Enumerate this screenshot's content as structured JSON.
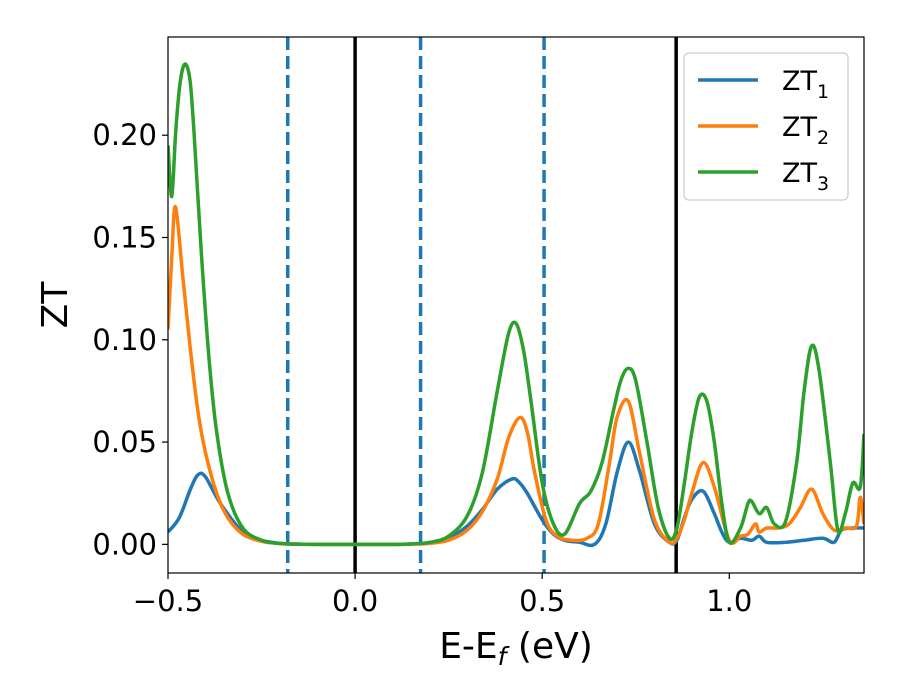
{
  "chart_data": {
    "type": "line",
    "title": "",
    "xlabel": "E-E",
    "xlabel_sub": "f",
    "xlabel_unit": " (eV)",
    "ylabel": "ZT",
    "xlim": [
      -0.5,
      1.36
    ],
    "ylim": [
      -0.014,
      0.248
    ],
    "x_ticks": [
      -0.5,
      0.0,
      0.5,
      1.0
    ],
    "x_tick_labels": [
      "−0.5",
      "0.0",
      "0.5",
      "1.0"
    ],
    "y_ticks": [
      0.0,
      0.05,
      0.1,
      0.15,
      0.2
    ],
    "y_tick_labels": [
      "0.00",
      "0.05",
      "0.10",
      "0.15",
      "0.20"
    ],
    "grid": false,
    "legend_position": "top-right",
    "vlines": [
      {
        "x": 0.0,
        "style": "solid",
        "color": "#000000"
      },
      {
        "x": 0.858,
        "style": "solid",
        "color": "#000000"
      },
      {
        "x": -0.18,
        "style": "dashed",
        "color": "#1f77b4"
      },
      {
        "x": 0.175,
        "style": "dashed",
        "color": "#1f77b4"
      },
      {
        "x": 0.505,
        "style": "dashed",
        "color": "#1f77b4"
      }
    ],
    "series": [
      {
        "name": "ZT",
        "name_sub": "1",
        "color": "#1f77b4",
        "x": [
          -0.5,
          -0.47,
          -0.44,
          -0.42,
          -0.4,
          -0.36,
          -0.3,
          -0.25,
          -0.2,
          -0.15,
          -0.1,
          0.0,
          0.1,
          0.15,
          0.2,
          0.25,
          0.3,
          0.34,
          0.38,
          0.42,
          0.44,
          0.46,
          0.5,
          0.53,
          0.56,
          0.6,
          0.64,
          0.67,
          0.7,
          0.73,
          0.76,
          0.8,
          0.84,
          0.86,
          0.88,
          0.9,
          0.93,
          0.96,
          0.98,
          1.0,
          1.03,
          1.06,
          1.08,
          1.1,
          1.15,
          1.2,
          1.25,
          1.28,
          1.3,
          1.33,
          1.36
        ],
        "y": [
          0.006,
          0.013,
          0.027,
          0.034,
          0.033,
          0.02,
          0.006,
          0.002,
          0.0005,
          0.0001,
          0.0,
          0.0,
          0.0,
          0.0002,
          0.0008,
          0.003,
          0.009,
          0.017,
          0.027,
          0.032,
          0.03,
          0.025,
          0.012,
          0.005,
          0.002,
          0.001,
          0.0,
          0.01,
          0.035,
          0.05,
          0.036,
          0.01,
          0.001,
          0.002,
          0.013,
          0.022,
          0.026,
          0.015,
          0.006,
          0.001,
          0.003,
          0.002,
          0.004,
          0.001,
          0.001,
          0.002,
          0.003,
          0.001,
          0.007,
          0.008,
          0.008
        ]
      },
      {
        "name": "ZT",
        "name_sub": "2",
        "color": "#ff7f0e",
        "x": [
          -0.5,
          -0.49,
          -0.48,
          -0.46,
          -0.44,
          -0.42,
          -0.4,
          -0.37,
          -0.34,
          -0.3,
          -0.25,
          -0.2,
          -0.15,
          -0.1,
          0.0,
          0.1,
          0.15,
          0.2,
          0.25,
          0.3,
          0.34,
          0.38,
          0.41,
          0.44,
          0.46,
          0.48,
          0.51,
          0.54,
          0.58,
          0.62,
          0.65,
          0.68,
          0.7,
          0.73,
          0.76,
          0.8,
          0.84,
          0.86,
          0.88,
          0.9,
          0.93,
          0.96,
          1.0,
          1.03,
          1.05,
          1.07,
          1.08,
          1.1,
          1.13,
          1.16,
          1.19,
          1.22,
          1.25,
          1.28,
          1.31,
          1.34,
          1.35,
          1.36
        ],
        "y": [
          0.105,
          0.14,
          0.165,
          0.13,
          0.095,
          0.065,
          0.045,
          0.025,
          0.013,
          0.005,
          0.0015,
          0.0004,
          0.0001,
          0.0,
          0.0,
          0.0,
          0.0001,
          0.0005,
          0.002,
          0.007,
          0.016,
          0.032,
          0.052,
          0.062,
          0.055,
          0.035,
          0.012,
          0.004,
          0.002,
          0.003,
          0.01,
          0.04,
          0.062,
          0.07,
          0.045,
          0.012,
          0.001,
          0.003,
          0.012,
          0.025,
          0.04,
          0.028,
          0.002,
          0.004,
          0.005,
          0.01,
          0.006,
          0.008,
          0.008,
          0.01,
          0.018,
          0.027,
          0.015,
          0.007,
          0.008,
          0.009,
          0.023,
          0.01
        ]
      },
      {
        "name": "ZT",
        "name_sub": "3",
        "color": "#2ca02c",
        "x": [
          -0.5,
          -0.49,
          -0.48,
          -0.47,
          -0.46,
          -0.45,
          -0.44,
          -0.43,
          -0.41,
          -0.39,
          -0.37,
          -0.34,
          -0.3,
          -0.25,
          -0.2,
          -0.15,
          -0.1,
          0.0,
          0.1,
          0.15,
          0.2,
          0.25,
          0.3,
          0.34,
          0.38,
          0.41,
          0.43,
          0.45,
          0.47,
          0.5,
          0.53,
          0.56,
          0.6,
          0.63,
          0.66,
          0.69,
          0.71,
          0.73,
          0.75,
          0.78,
          0.81,
          0.84,
          0.86,
          0.88,
          0.9,
          0.92,
          0.94,
          0.96,
          0.98,
          1.0,
          1.03,
          1.05,
          1.06,
          1.08,
          1.1,
          1.12,
          1.15,
          1.18,
          1.2,
          1.22,
          1.24,
          1.27,
          1.29,
          1.31,
          1.33,
          1.35,
          1.36
        ],
        "y": [
          0.195,
          0.17,
          0.2,
          0.222,
          0.233,
          0.234,
          0.225,
          0.2,
          0.14,
          0.09,
          0.055,
          0.025,
          0.008,
          0.002,
          0.0004,
          0.0001,
          0.0,
          0.0,
          0.0,
          0.0002,
          0.001,
          0.004,
          0.014,
          0.035,
          0.075,
          0.103,
          0.108,
          0.095,
          0.07,
          0.03,
          0.01,
          0.005,
          0.02,
          0.026,
          0.04,
          0.065,
          0.08,
          0.086,
          0.08,
          0.05,
          0.018,
          0.003,
          0.008,
          0.03,
          0.055,
          0.072,
          0.07,
          0.05,
          0.02,
          0.001,
          0.008,
          0.02,
          0.021,
          0.015,
          0.018,
          0.01,
          0.011,
          0.04,
          0.075,
          0.097,
          0.085,
          0.04,
          0.007,
          0.015,
          0.03,
          0.028,
          0.054
        ]
      }
    ]
  }
}
